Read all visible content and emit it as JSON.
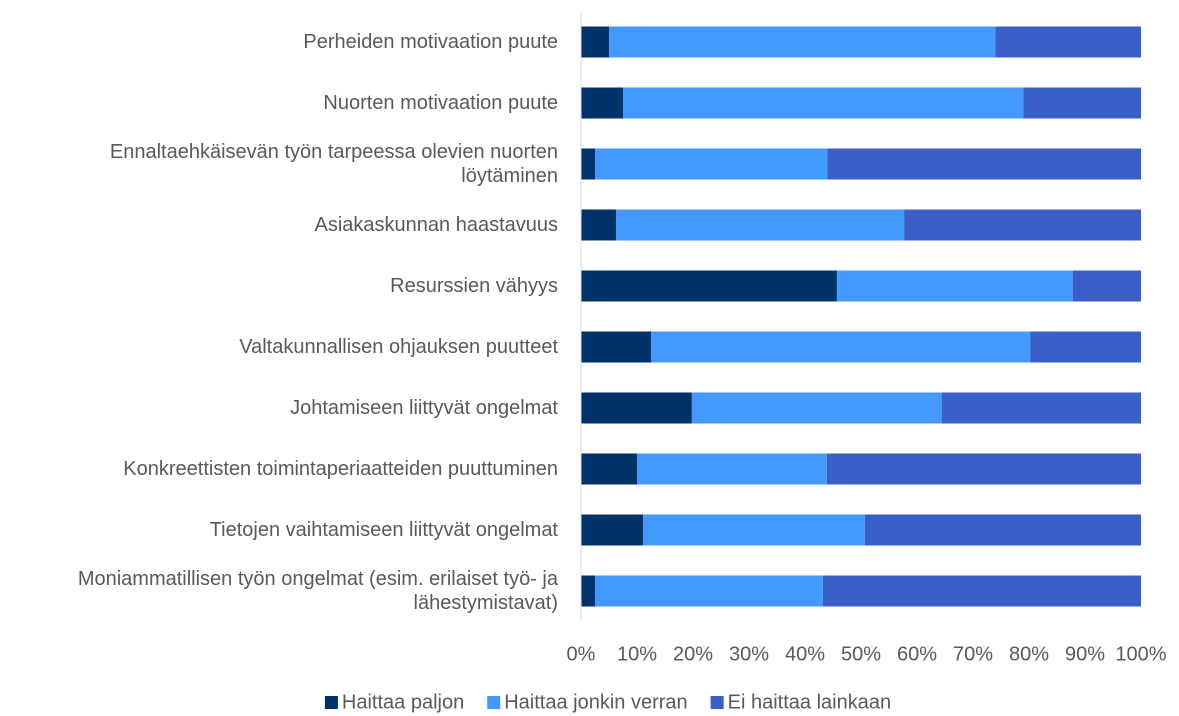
{
  "chart_data": {
    "type": "stacked_bar_horizontal",
    "categories": [
      "Perheiden motivaation puute",
      "Nuorten motivaation puute",
      "Ennaltaehkäisevän työn tarpeessa olevien nuorten löytäminen",
      "Asiakaskunnan haastavuus",
      "Resurssien vähyys",
      "Valtakunnallisen ohjauksen puutteet",
      "Johtamiseen liittyvät ongelmat",
      "Konkreettisten toimintaperiaatteiden puuttuminen",
      "Tietojen vaihtamiseen liittyvät ongelmat",
      "Moniammatillisen työn ongelmat (esim. erilaiset työ- ja lähestymistavat)"
    ],
    "series": [
      {
        "name": "Haittaa paljon",
        "color": "#003169",
        "values": [
          5,
          7.5,
          2.5,
          6.3,
          45.7,
          12.5,
          19.8,
          10,
          11.1,
          2.5
        ]
      },
      {
        "name": "Haittaa jonkin verran",
        "color": "#4499ff",
        "values": [
          69,
          71.5,
          41.5,
          51.4,
          42.1,
          67.7,
          44.6,
          33.9,
          39.6,
          40.7
        ]
      },
      {
        "name": "Ei haittaa lainkaan",
        "color": "#3a5fc8",
        "values": [
          26,
          21,
          56,
          42.3,
          12.2,
          19.8,
          35.6,
          56.1,
          49.3,
          56.8
        ]
      }
    ],
    "xlim": [
      0,
      100
    ],
    "xticks": [
      {
        "value": 0,
        "label": "0%"
      },
      {
        "value": 10,
        "label": "10%"
      },
      {
        "value": 20,
        "label": "20%"
      },
      {
        "value": 30,
        "label": "30%"
      },
      {
        "value": 40,
        "label": "40%"
      },
      {
        "value": 50,
        "label": "50%"
      },
      {
        "value": 60,
        "label": "60%"
      },
      {
        "value": 70,
        "label": "70%"
      },
      {
        "value": 80,
        "label": "80%"
      },
      {
        "value": 90,
        "label": "90%"
      },
      {
        "value": 100,
        "label": "100%"
      }
    ],
    "grid": false,
    "legend": "bottom"
  }
}
